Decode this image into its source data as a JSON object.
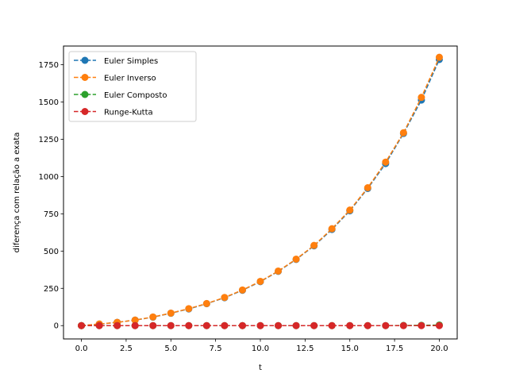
{
  "chart_data": {
    "type": "line",
    "title": "",
    "xlabel": "t",
    "ylabel": "diferença com relação a exata",
    "xlim": [
      -1.0,
      21.0
    ],
    "ylim": [
      -89.3,
      1875.4
    ],
    "xticks": [
      0.0,
      2.5,
      5.0,
      7.5,
      10.0,
      12.5,
      15.0,
      17.5,
      20.0
    ],
    "xtick_labels": [
      "0.0",
      "2.5",
      "5.0",
      "7.5",
      "10.0",
      "12.5",
      "15.0",
      "17.5",
      "20.0"
    ],
    "yticks": [
      0,
      250,
      500,
      750,
      1000,
      1250,
      1500,
      1750
    ],
    "ytick_labels": [
      "0",
      "250",
      "500",
      "750",
      "1000",
      "1250",
      "1500",
      "1750"
    ],
    "grid": false,
    "legend_position": "top-left",
    "x": [
      0,
      1,
      2,
      3,
      4,
      5,
      6,
      7,
      8,
      9,
      10,
      11,
      12,
      13,
      14,
      15,
      16,
      17,
      18,
      19,
      20
    ],
    "series": [
      {
        "name": "Euler Simples",
        "color": "#1f77b4",
        "values": [
          0,
          10,
          22,
          37,
          57,
          83,
          112,
          147,
          187,
          237,
          295,
          364,
          444,
          535,
          645,
          770,
          920,
          1087,
          1289,
          1513,
          1785
        ]
      },
      {
        "name": "Euler Inverso",
        "color": "#ff7f0e",
        "values": [
          0,
          11,
          22,
          37,
          58,
          84,
          114,
          148,
          189,
          239,
          297,
          366,
          446,
          538,
          650,
          775,
          925,
          1097,
          1294,
          1531,
          1800
        ]
      },
      {
        "name": "Euler Composto",
        "color": "#2ca02c",
        "values": [
          0,
          0,
          0,
          0,
          0,
          0,
          0,
          0,
          0,
          0,
          0,
          0,
          0,
          0,
          0,
          0,
          0,
          0,
          1,
          2,
          4
        ]
      },
      {
        "name": "Runge-Kutta",
        "color": "#d62728",
        "values": [
          0,
          0,
          0,
          0,
          0,
          0,
          0,
          0,
          0,
          0,
          0,
          0,
          0,
          0,
          0,
          0,
          0,
          0,
          0,
          0,
          0
        ]
      }
    ]
  }
}
